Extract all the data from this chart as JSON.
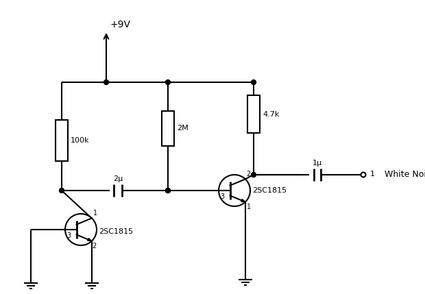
{
  "bg_color": "#ffffff",
  "line_color": "#000000",
  "lw": 1.5,
  "fig_width": 6.2,
  "fig_height": 4.29,
  "dpi": 100,
  "font_size": 9,
  "vcc_label": "+9V",
  "r1_label": "100k",
  "r2_label": "2M",
  "r3_label": "4.7k",
  "c1_label": "2μ",
  "c2_label": "1μ",
  "q1_label": "2SC1815",
  "q2_label": "2SC1815",
  "out_label": "White Noise",
  "out_pin": "1",
  "q1_pins": {
    "c": "1",
    "b": "3",
    "e": "2"
  },
  "q2_pins": {
    "c": "2",
    "b": "3",
    "e": "1"
  }
}
